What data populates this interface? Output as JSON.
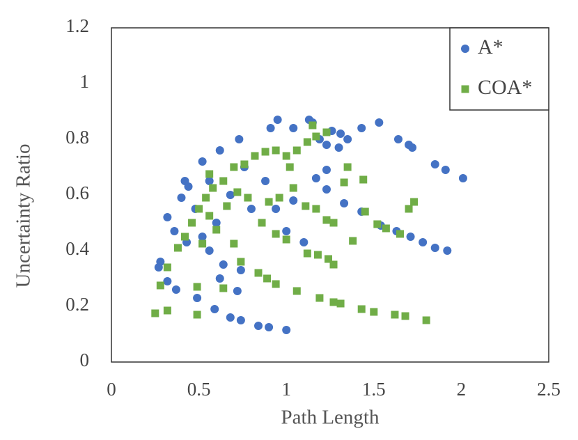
{
  "chart_data": {
    "type": "scatter",
    "x_label": "Path Length",
    "y_label": "Uncertainty Ratio",
    "xlim": [
      0,
      2.5
    ],
    "xticks": [
      0,
      0.5,
      1,
      1.5,
      2,
      2.5
    ],
    "ylim": [
      0,
      1.2
    ],
    "yticks": [
      0,
      0.2,
      0.4,
      0.6,
      0.8,
      1,
      1.2
    ],
    "legend": "top-right",
    "series": [
      {
        "name": "A*",
        "color": "#4472c4",
        "marker": "circle",
        "x": [
          1.0,
          0.9,
          0.84,
          0.74,
          0.68,
          0.59,
          0.49,
          2.01,
          1.91,
          1.85,
          1.72,
          1.7,
          1.64,
          1.53,
          1.43,
          1.92,
          1.85,
          1.78,
          1.71,
          1.63,
          1.54,
          1.43,
          1.33,
          1.23,
          1.13,
          0.95,
          0.91,
          1.04,
          1.15,
          1.26,
          1.31,
          1.35,
          1.3,
          0.32,
          0.4,
          0.44,
          0.52,
          0.62,
          0.73,
          0.36,
          0.43,
          0.28,
          0.27,
          0.32,
          0.37,
          0.56,
          0.64,
          0.74,
          0.72,
          0.62,
          0.8,
          0.88,
          0.94,
          1.0,
          1.1,
          1.04,
          1.17,
          1.23,
          1.19,
          1.23,
          0.76,
          0.56,
          0.68,
          0.6,
          0.52,
          0.48,
          0.42
        ],
        "y": [
          0.115,
          0.125,
          0.13,
          0.15,
          0.16,
          0.19,
          0.23,
          0.66,
          0.69,
          0.71,
          0.77,
          0.78,
          0.8,
          0.86,
          0.84,
          0.4,
          0.41,
          0.43,
          0.45,
          0.47,
          0.49,
          0.54,
          0.57,
          0.62,
          0.87,
          0.87,
          0.84,
          0.84,
          0.86,
          0.83,
          0.82,
          0.8,
          0.77,
          0.52,
          0.59,
          0.63,
          0.72,
          0.76,
          0.8,
          0.47,
          0.43,
          0.36,
          0.34,
          0.29,
          0.26,
          0.4,
          0.35,
          0.33,
          0.255,
          0.3,
          0.55,
          0.65,
          0.55,
          0.47,
          0.43,
          0.58,
          0.66,
          0.69,
          0.8,
          0.78,
          0.7,
          0.65,
          0.6,
          0.5,
          0.45,
          0.55,
          0.65
        ]
      },
      {
        "name": "COA*",
        "color": "#70ad47",
        "marker": "square",
        "x": [
          1.8,
          1.68,
          1.62,
          1.5,
          1.43,
          1.31,
          1.27,
          1.19,
          1.06,
          0.94,
          0.89,
          0.84,
          0.32,
          0.25,
          0.49,
          0.49,
          0.28,
          0.32,
          1.73,
          1.7,
          1.65,
          1.57,
          1.52,
          1.45,
          1.38,
          1.27,
          1.24,
          1.18,
          1.12,
          1.44,
          1.35,
          1.33,
          1.27,
          1.23,
          1.17,
          1.11,
          1.04,
          0.96,
          0.9,
          0.86,
          0.94,
          1.0,
          1.23,
          1.17,
          1.12,
          1.06,
          1.0,
          0.94,
          0.88,
          0.82,
          0.76,
          0.7,
          0.64,
          0.58,
          0.54,
          0.5,
          0.46,
          0.42,
          0.38,
          0.56,
          0.72,
          0.78,
          0.66,
          0.6,
          0.7,
          0.52,
          0.64,
          0.74,
          0.56,
          1.02,
          1.15
        ],
        "y": [
          0.15,
          0.165,
          0.17,
          0.18,
          0.19,
          0.21,
          0.215,
          0.23,
          0.255,
          0.28,
          0.3,
          0.32,
          0.185,
          0.175,
          0.17,
          0.27,
          0.275,
          0.34,
          0.575,
          0.55,
          0.46,
          0.48,
          0.495,
          0.54,
          0.435,
          0.35,
          0.37,
          0.385,
          0.39,
          0.655,
          0.7,
          0.645,
          0.5,
          0.51,
          0.55,
          0.56,
          0.625,
          0.59,
          0.575,
          0.5,
          0.46,
          0.44,
          0.825,
          0.81,
          0.79,
          0.76,
          0.74,
          0.76,
          0.755,
          0.74,
          0.71,
          0.7,
          0.65,
          0.625,
          0.59,
          0.55,
          0.5,
          0.45,
          0.41,
          0.675,
          0.61,
          0.59,
          0.56,
          0.475,
          0.425,
          0.425,
          0.265,
          0.36,
          0.525,
          0.7,
          0.85
        ]
      }
    ]
  }
}
